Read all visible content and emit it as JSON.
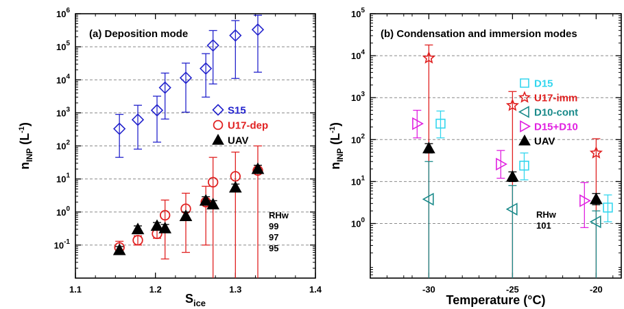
{
  "chart_data": [
    {
      "type": "scatter",
      "title": "(a) Deposition mode",
      "xlabel": "S",
      "xlabel_sub": "ice",
      "ylabel": "n",
      "ylabel_sub": "INP",
      "ylabel_unit": " (L",
      "ylabel_unit_sup": "-1",
      "ylabel_unit_close": ")",
      "xlim": [
        1.1,
        1.4
      ],
      "ylim": [
        0.01,
        1000000
      ],
      "yscale": "log",
      "grid": "horizontal dashed",
      "legend_placement": "right-middle",
      "x_ticks": [
        "1.1",
        "1.2",
        "1.3",
        "1.4"
      ],
      "x_tick_values": [
        1.1,
        1.2,
        1.3,
        1.4
      ],
      "y_ticks": [
        {
          "value": 1000000,
          "base": "10",
          "exp": "6"
        },
        {
          "value": 100000,
          "base": "10",
          "exp": "5"
        },
        {
          "value": 10000,
          "base": "10",
          "exp": "4"
        },
        {
          "value": 1000,
          "base": "10",
          "exp": "3"
        },
        {
          "value": 100,
          "base": "10",
          "exp": "2"
        },
        {
          "value": 10,
          "base": "10",
          "exp": "1"
        },
        {
          "value": 1,
          "base": "10",
          "exp": "0"
        },
        {
          "value": 0.1,
          "base": "10",
          "exp": "-1"
        }
      ],
      "series": [
        {
          "name": "S15",
          "marker": "diamond",
          "color": "#2222cc",
          "points": [
            {
              "x": 1.155,
              "y": 330,
              "lo": 45,
              "hi": 900
            },
            {
              "x": 1.178,
              "y": 620,
              "lo": 80,
              "hi": 1700
            },
            {
              "x": 1.202,
              "y": 1200,
              "lo": 130,
              "hi": 3200
            },
            {
              "x": 1.212,
              "y": 5800,
              "lo": 650,
              "hi": 16000
            },
            {
              "x": 1.238,
              "y": 11500,
              "lo": 1050,
              "hi": 32000
            },
            {
              "x": 1.263,
              "y": 22000,
              "lo": 3000,
              "hi": 62000
            },
            {
              "x": 1.272,
              "y": 110000,
              "lo": 7500,
              "hi": 310000
            },
            {
              "x": 1.3,
              "y": 220000,
              "lo": 11000,
              "hi": 620000
            },
            {
              "x": 1.328,
              "y": 330000,
              "lo": 17000,
              "hi": 900000
            }
          ]
        },
        {
          "name": "U17-dep",
          "marker": "circle",
          "color": "#e02020",
          "points": [
            {
              "x": 1.155,
              "y": 0.085,
              "lo": 0.06,
              "hi": 0.13
            },
            {
              "x": 1.178,
              "y": 0.14,
              "lo": 0.1,
              "hi": 0.19
            },
            {
              "x": 1.202,
              "y": 0.22,
              "lo": 0.16,
              "hi": 0.3
            },
            {
              "x": 1.212,
              "y": 0.8,
              "lo": 0.038,
              "hi": 2.3
            },
            {
              "x": 1.238,
              "y": 1.25,
              "lo": 0.06,
              "hi": 3.7
            },
            {
              "x": 1.263,
              "y": 2.0,
              "lo": 0.1,
              "hi": 6.0
            },
            {
              "x": 1.272,
              "y": 8.0,
              "lo": 0.004,
              "hi": 45
            },
            {
              "x": 1.3,
              "y": 12,
              "lo": 0.004,
              "hi": 65
            },
            {
              "x": 1.328,
              "y": 18,
              "lo": 0.004,
              "hi": 100
            }
          ]
        },
        {
          "name": "UAV",
          "marker": "triangle",
          "color": "#000000",
          "points": [
            {
              "x": 1.155,
              "y": 0.07,
              "lo": 0.055,
              "hi": 0.09
            },
            {
              "x": 1.178,
              "y": 0.3,
              "lo": 0.22,
              "hi": 0.38
            },
            {
              "x": 1.202,
              "y": 0.38,
              "lo": 0.3,
              "hi": 0.48
            },
            {
              "x": 1.212,
              "y": 0.32,
              "lo": 0.24,
              "hi": 0.42
            },
            {
              "x": 1.238,
              "y": 0.75,
              "lo": 0.55,
              "hi": 1.0
            },
            {
              "x": 1.263,
              "y": 2.2,
              "lo": 1.7,
              "hi": 2.9
            },
            {
              "x": 1.272,
              "y": 1.7,
              "lo": 1.3,
              "hi": 2.2
            },
            {
              "x": 1.3,
              "y": 5.5,
              "lo": 4.3,
              "hi": 7.0
            },
            {
              "x": 1.328,
              "y": 20,
              "lo": 15,
              "hi": 26
            }
          ]
        }
      ],
      "annotation": {
        "header": "RHw",
        "values": [
          "99",
          "97",
          "95"
        ]
      }
    },
    {
      "type": "scatter",
      "title": "(b) Condensation and immersion modes",
      "xlabel": "Temperature (°C)",
      "ylabel": "n",
      "ylabel_sub": "INP",
      "ylabel_unit": " (L",
      "ylabel_unit_sup": "-1",
      "ylabel_unit_close": ")",
      "xlim": [
        -33.5,
        -18.5
      ],
      "ylim": [
        0.05,
        100000
      ],
      "yscale": "log",
      "grid": "horizontal dashed",
      "legend_placement": "top-right",
      "x_ticks": [
        "-30",
        "-25",
        "-20"
      ],
      "x_tick_values": [
        -30,
        -25,
        -20
      ],
      "y_ticks": [
        {
          "value": 100000,
          "base": "10",
          "exp": "5"
        },
        {
          "value": 10000,
          "base": "10",
          "exp": "4"
        },
        {
          "value": 1000,
          "base": "10",
          "exp": "3"
        },
        {
          "value": 100,
          "base": "10",
          "exp": "2"
        },
        {
          "value": 10,
          "base": "10",
          "exp": "1"
        },
        {
          "value": 1,
          "base": "10",
          "exp": "0"
        }
      ],
      "series": [
        {
          "name": "D15",
          "marker": "square",
          "color": "#33d6ee",
          "points": [
            {
              "x": -29.3,
              "y": 240,
              "lo": 110,
              "hi": 480
            },
            {
              "x": -24.3,
              "y": 24,
              "lo": 11,
              "hi": 48
            },
            {
              "x": -19.3,
              "y": 2.4,
              "lo": 1.1,
              "hi": 4.8
            }
          ]
        },
        {
          "name": "U17-imm",
          "marker": "star",
          "color": "#e02020",
          "points": [
            {
              "x": -30,
              "y": 8800,
              "lo": 0.04,
              "hi": 18000
            },
            {
              "x": -25,
              "y": 650,
              "lo": 0.04,
              "hi": 1400
            },
            {
              "x": -20,
              "y": 48,
              "lo": 0.04,
              "hi": 105
            }
          ]
        },
        {
          "name": "D10-cont",
          "marker": "triangle-left",
          "color": "#1a8a8a",
          "points": [
            {
              "x": -30,
              "y": 3.8,
              "lo": 0.04,
              "hi": 30
            },
            {
              "x": -25,
              "y": 2.2,
              "lo": 0.04,
              "hi": 8
            },
            {
              "x": -20,
              "y": 1.1,
              "lo": 0.04,
              "hi": 2
            }
          ]
        },
        {
          "name": "D15+D10",
          "marker": "triangle-right",
          "color": "#e020e0",
          "points": [
            {
              "x": -30.7,
              "y": 240,
              "lo": 110,
              "hi": 500
            },
            {
              "x": -25.7,
              "y": 26,
              "lo": 12,
              "hi": 55
            },
            {
              "x": -20.7,
              "y": 3.5,
              "lo": 0.8,
              "hi": 9.5
            }
          ]
        },
        {
          "name": "UAV",
          "marker": "triangle",
          "color": "#000000",
          "points": [
            {
              "x": -30,
              "y": 62,
              "lo": 48,
              "hi": 80
            },
            {
              "x": -25,
              "y": 13,
              "lo": 10,
              "hi": 17
            },
            {
              "x": -20,
              "y": 3.8,
              "lo": 2.8,
              "hi": 5.2
            }
          ]
        }
      ],
      "annotation": {
        "header": "RHw",
        "values": [
          "101"
        ]
      }
    }
  ]
}
